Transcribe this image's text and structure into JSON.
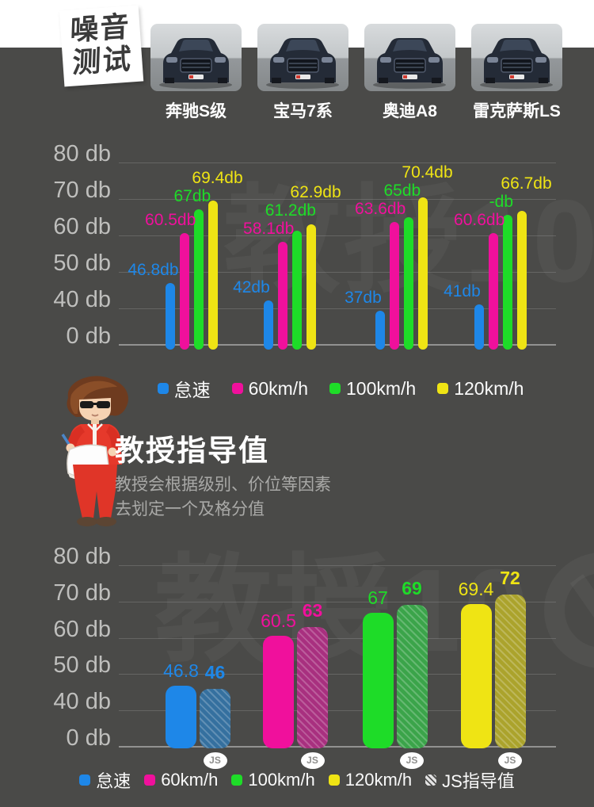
{
  "header": {
    "badge_line1": "噪音",
    "badge_line2": "测试",
    "cars": [
      {
        "name": "奔驰S级"
      },
      {
        "name": "宝马7系"
      },
      {
        "name": "奥迪A8"
      },
      {
        "name": "雷克萨斯LS"
      }
    ]
  },
  "watermark": {
    "text": "教授10"
  },
  "section": {
    "title": "教授指导值",
    "desc_line1": "教授会根据级别、价位等因素",
    "desc_line2": "去划定一个及格分值"
  },
  "chart_data": [
    {
      "id": "noise-test",
      "type": "bar",
      "title": "噪音测试",
      "ylabel": "db",
      "grid": true,
      "ylim": [
        0,
        80
      ],
      "yticks": [
        {
          "v": 80,
          "label": "80 db"
        },
        {
          "v": 70,
          "label": "70 db"
        },
        {
          "v": 60,
          "label": "60 db"
        },
        {
          "v": 50,
          "label": "50 db"
        },
        {
          "v": 40,
          "label": "40 db"
        },
        {
          "v": 0,
          "label": "0 db"
        }
      ],
      "categories": [
        "奔驰S级",
        "宝马7系",
        "奥迪A8",
        "雷克萨斯LS"
      ],
      "series": [
        {
          "name": "怠速",
          "color": "#1E87E8",
          "values": [
            46.8,
            42,
            37,
            41
          ],
          "labels": [
            "46.8db",
            "42db",
            "37db",
            "41db"
          ]
        },
        {
          "name": "60km/h",
          "color": "#F0109C",
          "values": [
            60.5,
            58.1,
            63.6,
            60.6
          ],
          "labels": [
            "60.5db",
            "58.1db",
            "63.6db",
            "60.6db"
          ]
        },
        {
          "name": "100km/h",
          "color": "#1EDC28",
          "values": [
            67,
            61.2,
            65,
            65.6
          ],
          "labels": [
            "67db",
            "61.2db",
            "65db",
            "-db"
          ]
        },
        {
          "name": "120km/h",
          "color": "#EFE414",
          "values": [
            69.4,
            62.9,
            70.4,
            66.7
          ],
          "labels": [
            "69.4db",
            "62.9db",
            "70.4db",
            "66.7db"
          ]
        }
      ],
      "legend": [
        "怠速",
        "60km/h",
        "100km/h",
        "120km/h"
      ],
      "legend_position": "bottom"
    },
    {
      "id": "professor-guide",
      "type": "bar",
      "title": "教授指导值",
      "ylabel": "db",
      "grid": true,
      "ylim": [
        0,
        80
      ],
      "yticks": [
        {
          "v": 80,
          "label": "80 db"
        },
        {
          "v": 70,
          "label": "70 db"
        },
        {
          "v": 60,
          "label": "60 db"
        },
        {
          "v": 50,
          "label": "50 db"
        },
        {
          "v": 40,
          "label": "40 db"
        },
        {
          "v": 0,
          "label": "0 db"
        }
      ],
      "badge": "JS",
      "pairs": [
        {
          "category": "怠速",
          "color": "#1E87E8",
          "hatch_color": "#35709F",
          "measured": 46.8,
          "measured_label": "46.8",
          "guide": 46,
          "guide_label": "46"
        },
        {
          "category": "60km/h",
          "color": "#F0109C",
          "hatch_color": "#A8307F",
          "measured": 60.5,
          "measured_label": "60.5",
          "guide": 63,
          "guide_label": "63"
        },
        {
          "category": "100km/h",
          "color": "#1EDC28",
          "hatch_color": "#3BA44A",
          "measured": 67,
          "measured_label": "67",
          "guide": 69,
          "guide_label": "69"
        },
        {
          "category": "120km/h",
          "color": "#EFE414",
          "hatch_color": "#ABA32C",
          "measured": 69.4,
          "measured_label": "69.4",
          "guide": 72,
          "guide_label": "72"
        }
      ],
      "legend": [
        "怠速",
        "60km/h",
        "100km/h",
        "120km/h",
        "JS指导值"
      ],
      "legend_position": "bottom"
    }
  ]
}
